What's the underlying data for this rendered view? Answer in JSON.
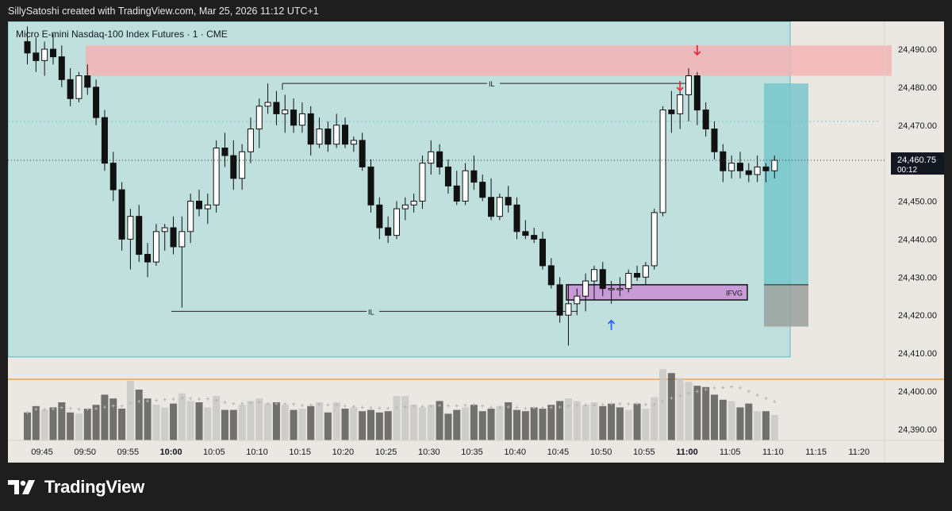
{
  "header": {
    "attribution": "SillySatoshi created with TradingView.com, Mar 25, 2026 11:12 UTC+1"
  },
  "instrument": {
    "title": "Micro E-mini Nasdaq-100 Index Futures · 1 · CME"
  },
  "brand": {
    "name": "TradingView",
    "icon": "tradingview-logo-icon"
  },
  "colors": {
    "background": "#ebe7e2",
    "bullish": "#ffffff",
    "bearish": "#111111",
    "range_box": "#bfe0dc",
    "supply_zone": "#f3b3b5",
    "ifvg_zone": "#c79bd6",
    "target_box": "#6cc3c9",
    "stop_box": "#9aa09e",
    "sell_arrow": "#e03141",
    "buy_arrow": "#2962ff",
    "volume_bear": "#5a5a5a",
    "volume_bull": "#c8c8c8",
    "orange_line": "#f57c00"
  },
  "chart_data": {
    "type": "candlestick",
    "timeframe": "1",
    "x_axis": {
      "tick_labels": [
        "09:45",
        "09:50",
        "09:55",
        "10:00",
        "10:05",
        "10:10",
        "10:15",
        "10:20",
        "10:25",
        "10:30",
        "10:35",
        "10:40",
        "10:45",
        "10:50",
        "10:55",
        "11:00",
        "11:05",
        "11:10",
        "11:15",
        "11:20"
      ],
      "bold_labels": [
        "10:00",
        "11:00"
      ]
    },
    "y_axis": {
      "tick_labels": [
        "24,490.00",
        "24,480.00",
        "24,470.00",
        "24,460.00",
        "24,450.00",
        "24,440.00",
        "24,430.00",
        "24,420.00",
        "24,410.00",
        "24,400.00",
        "24,390.00"
      ],
      "tick_values": [
        24490,
        24480,
        24470,
        24460,
        24450,
        24440,
        24430,
        24420,
        24410,
        24400,
        24390
      ],
      "range": [
        24385,
        24500
      ]
    },
    "last_price": {
      "label": "24,460.75",
      "value": 24460.75,
      "countdown": "00:12"
    },
    "candles": [
      {
        "o": 24492,
        "h": 24496,
        "l": 24486,
        "c": 24489
      },
      {
        "o": 24489,
        "h": 24493,
        "l": 24484,
        "c": 24487
      },
      {
        "o": 24487,
        "h": 24492,
        "l": 24483,
        "c": 24490
      },
      {
        "o": 24490,
        "h": 24494,
        "l": 24486,
        "c": 24488
      },
      {
        "o": 24488,
        "h": 24491,
        "l": 24480,
        "c": 24482
      },
      {
        "o": 24482,
        "h": 24485,
        "l": 24475,
        "c": 24477
      },
      {
        "o": 24477,
        "h": 24484,
        "l": 24476,
        "c": 24483
      },
      {
        "o": 24483,
        "h": 24486,
        "l": 24478,
        "c": 24480
      },
      {
        "o": 24480,
        "h": 24482,
        "l": 24470,
        "c": 24472
      },
      {
        "o": 24472,
        "h": 24474,
        "l": 24458,
        "c": 24460
      },
      {
        "o": 24460,
        "h": 24463,
        "l": 24450,
        "c": 24453
      },
      {
        "o": 24453,
        "h": 24455,
        "l": 24437,
        "c": 24440
      },
      {
        "o": 24440,
        "h": 24448,
        "l": 24432,
        "c": 24446
      },
      {
        "o": 24446,
        "h": 24449,
        "l": 24434,
        "c": 24436
      },
      {
        "o": 24436,
        "h": 24439,
        "l": 24430,
        "c": 24434
      },
      {
        "o": 24434,
        "h": 24444,
        "l": 24433,
        "c": 24442
      },
      {
        "o": 24442,
        "h": 24444,
        "l": 24437,
        "c": 24443
      },
      {
        "o": 24443,
        "h": 24446,
        "l": 24436,
        "c": 24438
      },
      {
        "o": 24438,
        "h": 24446,
        "l": 24422,
        "c": 24442
      },
      {
        "o": 24442,
        "h": 24452,
        "l": 24439,
        "c": 24450
      },
      {
        "o": 24450,
        "h": 24453,
        "l": 24446,
        "c": 24448
      },
      {
        "o": 24448,
        "h": 24452,
        "l": 24444,
        "c": 24449
      },
      {
        "o": 24449,
        "h": 24466,
        "l": 24447,
        "c": 24464
      },
      {
        "o": 24464,
        "h": 24468,
        "l": 24459,
        "c": 24462
      },
      {
        "o": 24462,
        "h": 24466,
        "l": 24453,
        "c": 24456
      },
      {
        "o": 24456,
        "h": 24465,
        "l": 24453,
        "c": 24463
      },
      {
        "o": 24463,
        "h": 24472,
        "l": 24460,
        "c": 24469
      },
      {
        "o": 24469,
        "h": 24477,
        "l": 24464,
        "c": 24475
      },
      {
        "o": 24475,
        "h": 24481,
        "l": 24473,
        "c": 24476
      },
      {
        "o": 24476,
        "h": 24479,
        "l": 24470,
        "c": 24473
      },
      {
        "o": 24473,
        "h": 24478,
        "l": 24468,
        "c": 24474
      },
      {
        "o": 24474,
        "h": 24477,
        "l": 24468,
        "c": 24470
      },
      {
        "o": 24470,
        "h": 24476,
        "l": 24468,
        "c": 24473
      },
      {
        "o": 24473,
        "h": 24475,
        "l": 24462,
        "c": 24465
      },
      {
        "o": 24465,
        "h": 24472,
        "l": 24464,
        "c": 24469
      },
      {
        "o": 24469,
        "h": 24471,
        "l": 24463,
        "c": 24465
      },
      {
        "o": 24465,
        "h": 24473,
        "l": 24464,
        "c": 24470
      },
      {
        "o": 24470,
        "h": 24472,
        "l": 24464,
        "c": 24465
      },
      {
        "o": 24465,
        "h": 24467,
        "l": 24463,
        "c": 24466
      },
      {
        "o": 24466,
        "h": 24468,
        "l": 24458,
        "c": 24459
      },
      {
        "o": 24459,
        "h": 24461,
        "l": 24447,
        "c": 24449
      },
      {
        "o": 24449,
        "h": 24451,
        "l": 24440,
        "c": 24443
      },
      {
        "o": 24443,
        "h": 24446,
        "l": 24439,
        "c": 24441
      },
      {
        "o": 24441,
        "h": 24450,
        "l": 24440,
        "c": 24448
      },
      {
        "o": 24448,
        "h": 24451,
        "l": 24445,
        "c": 24449
      },
      {
        "o": 24449,
        "h": 24452,
        "l": 24447,
        "c": 24450
      },
      {
        "o": 24450,
        "h": 24462,
        "l": 24448,
        "c": 24460
      },
      {
        "o": 24460,
        "h": 24466,
        "l": 24457,
        "c": 24463
      },
      {
        "o": 24463,
        "h": 24465,
        "l": 24457,
        "c": 24459
      },
      {
        "o": 24459,
        "h": 24461,
        "l": 24452,
        "c": 24454
      },
      {
        "o": 24454,
        "h": 24458,
        "l": 24449,
        "c": 24450
      },
      {
        "o": 24450,
        "h": 24460,
        "l": 24449,
        "c": 24458
      },
      {
        "o": 24458,
        "h": 24462,
        "l": 24453,
        "c": 24455
      },
      {
        "o": 24455,
        "h": 24457,
        "l": 24450,
        "c": 24451
      },
      {
        "o": 24451,
        "h": 24456,
        "l": 24445,
        "c": 24446
      },
      {
        "o": 24446,
        "h": 24452,
        "l": 24445,
        "c": 24451
      },
      {
        "o": 24451,
        "h": 24454,
        "l": 24447,
        "c": 24449
      },
      {
        "o": 24449,
        "h": 24451,
        "l": 24440,
        "c": 24442
      },
      {
        "o": 24442,
        "h": 24445,
        "l": 24440,
        "c": 24441
      },
      {
        "o": 24441,
        "h": 24443,
        "l": 24439,
        "c": 24440
      },
      {
        "o": 24440,
        "h": 24442,
        "l": 24432,
        "c": 24433
      },
      {
        "o": 24433,
        "h": 24435,
        "l": 24427,
        "c": 24428
      },
      {
        "o": 24428,
        "h": 24430,
        "l": 24418,
        "c": 24420
      },
      {
        "o": 24420,
        "h": 24428,
        "l": 24412,
        "c": 24423
      },
      {
        "o": 24423,
        "h": 24427,
        "l": 24420,
        "c": 24425
      },
      {
        "o": 24425,
        "h": 24431,
        "l": 24421,
        "c": 24429
      },
      {
        "o": 24429,
        "h": 24433,
        "l": 24424,
        "c": 24432
      },
      {
        "o": 24432,
        "h": 24434,
        "l": 24425,
        "c": 24427
      },
      {
        "o": 24427,
        "h": 24429,
        "l": 24423,
        "c": 24427
      },
      {
        "o": 24427,
        "h": 24430,
        "l": 24425,
        "c": 24427
      },
      {
        "o": 24427,
        "h": 24432,
        "l": 24426,
        "c": 24431
      },
      {
        "o": 24431,
        "h": 24433,
        "l": 24429,
        "c": 24430
      },
      {
        "o": 24430,
        "h": 24434,
        "l": 24428,
        "c": 24433
      },
      {
        "o": 24433,
        "h": 24448,
        "l": 24432,
        "c": 24447
      },
      {
        "o": 24447,
        "h": 24475,
        "l": 24446,
        "c": 24474
      },
      {
        "o": 24474,
        "h": 24479,
        "l": 24468,
        "c": 24473
      },
      {
        "o": 24473,
        "h": 24481,
        "l": 24469,
        "c": 24478
      },
      {
        "o": 24478,
        "h": 24485,
        "l": 24471,
        "c": 24483
      },
      {
        "o": 24483,
        "h": 24484,
        "l": 24470,
        "c": 24474
      },
      {
        "o": 24474,
        "h": 24476,
        "l": 24467,
        "c": 24469
      },
      {
        "o": 24469,
        "h": 24471,
        "l": 24461,
        "c": 24463
      },
      {
        "o": 24463,
        "h": 24465,
        "l": 24455,
        "c": 24458
      },
      {
        "o": 24458,
        "h": 24462,
        "l": 24456,
        "c": 24460
      },
      {
        "o": 24460,
        "h": 24463,
        "l": 24456,
        "c": 24458
      },
      {
        "o": 24458,
        "h": 24460,
        "l": 24455,
        "c": 24457
      },
      {
        "o": 24457,
        "h": 24462,
        "l": 24455,
        "c": 24459
      },
      {
        "o": 24459,
        "h": 24460,
        "l": 24455,
        "c": 24458
      },
      {
        "o": 24458,
        "h": 24462,
        "l": 24456,
        "c": 24460.75
      }
    ],
    "volume": [
      22,
      27,
      24,
      26,
      30,
      22,
      21,
      25,
      28,
      36,
      33,
      25,
      47,
      40,
      33,
      28,
      26,
      29,
      37,
      31,
      30,
      26,
      35,
      24,
      24,
      28,
      31,
      33,
      29,
      30,
      28,
      24,
      25,
      27,
      30,
      22,
      30,
      25,
      26,
      23,
      24,
      22,
      23,
      35,
      35,
      28,
      26,
      28,
      31,
      21,
      24,
      26,
      28,
      23,
      25,
      27,
      30,
      24,
      23,
      26,
      25,
      28,
      31,
      33,
      31,
      28,
      30,
      27,
      29,
      26,
      24,
      29,
      25,
      34,
      56,
      53,
      49,
      46,
      43,
      42,
      36,
      32,
      31,
      26,
      29,
      23,
      23,
      20
    ],
    "volume_bull": [
      false,
      false,
      true,
      false,
      false,
      false,
      true,
      false,
      false,
      false,
      false,
      false,
      true,
      false,
      false,
      true,
      true,
      false,
      true,
      true,
      false,
      true,
      true,
      false,
      false,
      true,
      true,
      true,
      true,
      false,
      true,
      false,
      true,
      false,
      true,
      false,
      true,
      false,
      true,
      false,
      false,
      false,
      false,
      true,
      true,
      true,
      true,
      true,
      false,
      false,
      false,
      true,
      false,
      false,
      false,
      true,
      false,
      false,
      false,
      false,
      false,
      false,
      false,
      true,
      true,
      true,
      true,
      false,
      false,
      false,
      true,
      false,
      true,
      true,
      true,
      false,
      true,
      true,
      false,
      false,
      false,
      false,
      true,
      false,
      false,
      true,
      false,
      true
    ],
    "annotations": {
      "il_upper": {
        "label": "IL",
        "price": 24481
      },
      "il_lower": {
        "label": "IL",
        "price": 24421
      },
      "ifvg": {
        "label": "IFVG",
        "top": 24428,
        "bottom": 24424
      },
      "supply_zone": {
        "top": 24491,
        "bottom": 24483
      },
      "range_box": {
        "top": 24520,
        "bottom": 24409
      },
      "position_target": {
        "top": 24481,
        "bottom": 24428
      },
      "position_stop": {
        "top": 24428,
        "bottom": 24417
      },
      "dotted_level": 24471
    }
  }
}
